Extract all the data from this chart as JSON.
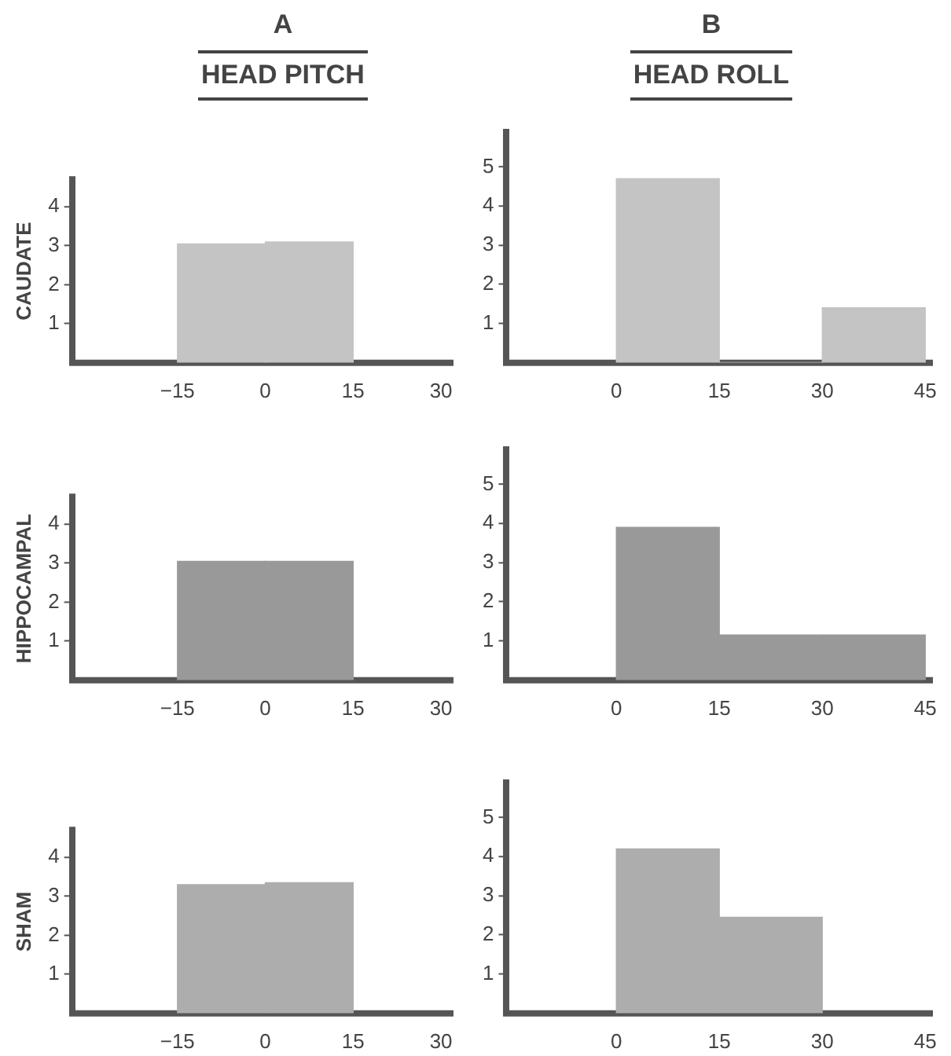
{
  "chart_data": [
    {
      "type": "histogram",
      "title": "A",
      "subtitle": "HEAD PITCH",
      "ylabel": "CAUDATE",
      "bins": [
        -15,
        0,
        15
      ],
      "values": [
        3.05,
        3.1
      ],
      "color": "#c4c4c4",
      "xlim": [
        -33,
        32
      ],
      "xticks": [
        -15,
        0,
        15,
        30
      ],
      "ylim": [
        0,
        4.7
      ],
      "yticks": [
        1,
        2,
        3,
        4
      ]
    },
    {
      "type": "histogram",
      "title": "B",
      "subtitle": "HEAD ROLL",
      "bins": [
        0,
        15,
        30,
        45
      ],
      "values": [
        4.7,
        0,
        1.4
      ],
      "color": "#c4c4c4",
      "xlim": [
        -16,
        46
      ],
      "xticks": [
        0,
        15,
        30,
        45
      ],
      "ylim": [
        0,
        5.9
      ],
      "yticks": [
        1,
        2,
        3,
        4,
        5
      ]
    },
    {
      "type": "histogram",
      "ylabel": "HIPPOCAMPAL",
      "bins": [
        -15,
        0,
        15
      ],
      "values": [
        3.05,
        3.05
      ],
      "color": "#999999",
      "xlim": [
        -33,
        32
      ],
      "xticks": [
        -15,
        0,
        15,
        30
      ],
      "ylim": [
        0,
        4.7
      ],
      "yticks": [
        1,
        2,
        3,
        4
      ]
    },
    {
      "type": "histogram",
      "bins": [
        0,
        15,
        30,
        45
      ],
      "values": [
        3.9,
        1.15,
        1.15
      ],
      "color": "#999999",
      "xlim": [
        -16,
        46
      ],
      "xticks": [
        0,
        15,
        30,
        45
      ],
      "ylim": [
        0,
        5.9
      ],
      "yticks": [
        1,
        2,
        3,
        4,
        5
      ]
    },
    {
      "type": "histogram",
      "ylabel": "SHAM",
      "bins": [
        -15,
        0,
        15
      ],
      "values": [
        3.3,
        3.35
      ],
      "color": "#adadad",
      "xlim": [
        -33,
        32
      ],
      "xticks": [
        -15,
        0,
        15,
        30
      ],
      "ylim": [
        0,
        4.7
      ],
      "yticks": [
        1,
        2,
        3,
        4
      ]
    },
    {
      "type": "histogram",
      "bins": [
        0,
        15,
        30
      ],
      "values": [
        4.2,
        2.45
      ],
      "color": "#adadad",
      "xlim": [
        -16,
        46
      ],
      "xticks": [
        0,
        15,
        30,
        45
      ],
      "ylim": [
        0,
        5.9
      ],
      "yticks": [
        1,
        2,
        3,
        4,
        5
      ]
    }
  ]
}
